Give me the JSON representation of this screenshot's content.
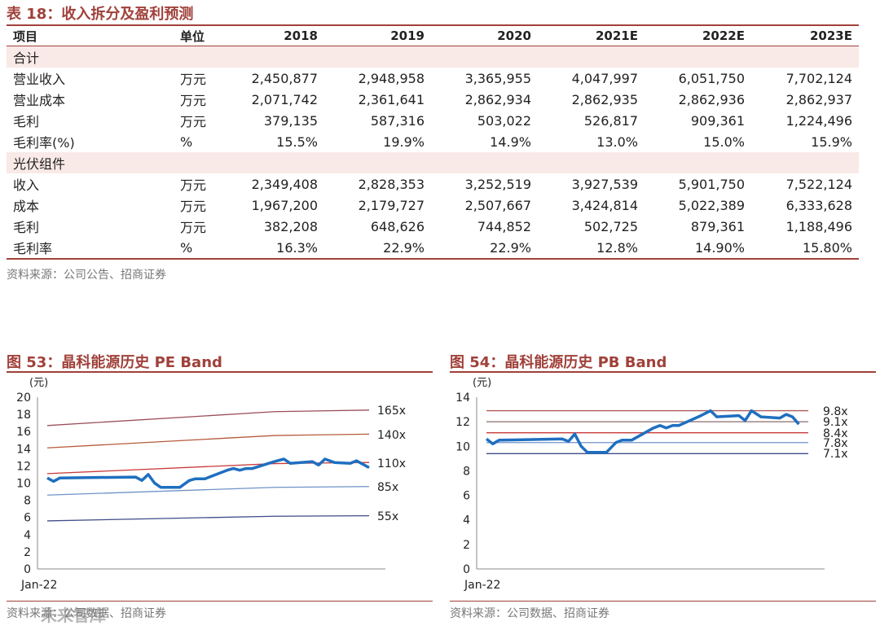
{
  "table": {
    "title": "表 18：收入拆分及盈利预测",
    "headers": [
      "项目",
      "单位",
      "2018",
      "2019",
      "2020",
      "2021E",
      "2022E",
      "2023E"
    ],
    "sections": [
      {
        "name": "合计",
        "rows": [
          {
            "label": "营业收入",
            "unit": "万元",
            "values": [
              "2,450,877",
              "2,948,958",
              "3,365,955",
              "4,047,997",
              "6,051,750",
              "7,702,124"
            ]
          },
          {
            "label": "营业成本",
            "unit": "万元",
            "values": [
              "2,071,742",
              "2,361,641",
              "2,862,934",
              "2,862,935",
              "2,862,936",
              "2,862,937"
            ]
          },
          {
            "label": "毛利",
            "unit": "万元",
            "values": [
              "379,135",
              "587,316",
              "503,022",
              "526,817",
              "909,361",
              "1,224,496"
            ]
          },
          {
            "label": "毛利率(%)",
            "unit": "%",
            "values": [
              "15.5%",
              "19.9%",
              "14.9%",
              "13.0%",
              "15.0%",
              "15.9%"
            ]
          }
        ]
      },
      {
        "name": "光伏组件",
        "rows": [
          {
            "label": "收入",
            "unit": "万元",
            "values": [
              "2,349,408",
              "2,828,353",
              "3,252,519",
              "3,927,539",
              "5,901,750",
              "7,522,124"
            ]
          },
          {
            "label": "成本",
            "unit": "万元",
            "values": [
              "1,967,200",
              "2,179,727",
              "2,507,667",
              "3,424,814",
              "5,022,389",
              "6,333,628"
            ]
          },
          {
            "label": "毛利",
            "unit": "万元",
            "values": [
              "382,208",
              "648,626",
              "744,852",
              "502,725",
              "879,361",
              "1,188,496"
            ]
          },
          {
            "label": "毛利率",
            "unit": "%",
            "values": [
              "16.3%",
              "22.9%",
              "22.9%",
              "12.8%",
              "14.90%",
              "15.80%"
            ]
          }
        ]
      }
    ],
    "source": "资料来源：公司公告、招商证券"
  },
  "chart_data": [
    {
      "type": "line",
      "title": "图 53：晶科能源历史 PE Band",
      "ylabel": "(元)",
      "ylim": [
        0,
        20
      ],
      "yticks": [
        "0",
        "2",
        "4",
        "6",
        "8",
        "10",
        "12",
        "14",
        "16",
        "18",
        "20"
      ],
      "x_label": "Jan-22",
      "x": [
        0,
        100
      ],
      "price": [
        [
          0,
          10.6
        ],
        [
          2,
          10.2
        ],
        [
          4,
          10.6
        ],
        [
          28,
          10.7
        ],
        [
          30,
          10.3
        ],
        [
          32,
          11.0
        ],
        [
          34,
          10.0
        ],
        [
          36,
          9.5
        ],
        [
          42,
          9.5
        ],
        [
          45,
          10.3
        ],
        [
          47,
          10.5
        ],
        [
          50,
          10.5
        ],
        [
          57,
          11.5
        ],
        [
          59,
          11.7
        ],
        [
          61,
          11.5
        ],
        [
          63,
          11.7
        ],
        [
          65,
          11.7
        ],
        [
          72,
          12.5
        ],
        [
          75,
          12.8
        ],
        [
          77,
          12.3
        ],
        [
          84,
          12.5
        ],
        [
          86,
          12.1
        ],
        [
          88,
          12.8
        ],
        [
          91,
          12.4
        ],
        [
          96,
          12.3
        ],
        [
          98,
          12.6
        ],
        [
          100,
          12.2
        ],
        [
          102,
          11.8
        ]
      ],
      "bands": [
        {
          "name": "165x",
          "start": 16.7,
          "end": 18.5,
          "color": "#9b4d5a"
        },
        {
          "name": "140x",
          "start": 14.1,
          "end": 15.7,
          "color": "#b55a3c"
        },
        {
          "name": "110x",
          "start": 11.1,
          "end": 12.4,
          "color": "#c93a3a"
        },
        {
          "name": "85x",
          "start": 8.6,
          "end": 9.6,
          "color": "#6f93c8"
        },
        {
          "name": "55x",
          "start": 5.6,
          "end": 6.2,
          "color": "#3f4c8a"
        }
      ],
      "source": "资料来源：公司数据、招商证券"
    },
    {
      "type": "line",
      "title": "图 54：晶科能源历史 PB Band",
      "ylabel": "(元)",
      "ylim": [
        0,
        14
      ],
      "yticks": [
        "0",
        "2",
        "4",
        "6",
        "8",
        "10",
        "12",
        "14"
      ],
      "x_label": "Jan-22",
      "price": [
        [
          0,
          10.6
        ],
        [
          2,
          10.2
        ],
        [
          4,
          10.5
        ],
        [
          24,
          10.6
        ],
        [
          26,
          10.4
        ],
        [
          28,
          11.0
        ],
        [
          30,
          10.0
        ],
        [
          32,
          9.5
        ],
        [
          38,
          9.5
        ],
        [
          41,
          10.3
        ],
        [
          43,
          10.5
        ],
        [
          46,
          10.5
        ],
        [
          53,
          11.5
        ],
        [
          55,
          11.7
        ],
        [
          57,
          11.5
        ],
        [
          59,
          11.7
        ],
        [
          61,
          11.7
        ],
        [
          68,
          12.5
        ],
        [
          71,
          12.9
        ],
        [
          73,
          12.4
        ],
        [
          80,
          12.5
        ],
        [
          82,
          12.1
        ],
        [
          84,
          12.9
        ],
        [
          87,
          12.4
        ],
        [
          93,
          12.3
        ],
        [
          95,
          12.6
        ],
        [
          97,
          12.4
        ],
        [
          99,
          11.8
        ]
      ],
      "bands": [
        {
          "name": "9.8x",
          "value": 12.9,
          "color": "#b05a5a"
        },
        {
          "name": "9.1x",
          "value": 12.0,
          "color": "#8b6b6b"
        },
        {
          "name": "8.4x",
          "value": 11.1,
          "color": "#c93a3a"
        },
        {
          "name": "7.8x",
          "value": 10.3,
          "color": "#6f93c8"
        },
        {
          "name": "7.1x",
          "value": 9.4,
          "color": "#3f4c8a"
        }
      ],
      "source": "资料来源：公司数据、招商证券"
    }
  ],
  "watermark": "未来智库"
}
